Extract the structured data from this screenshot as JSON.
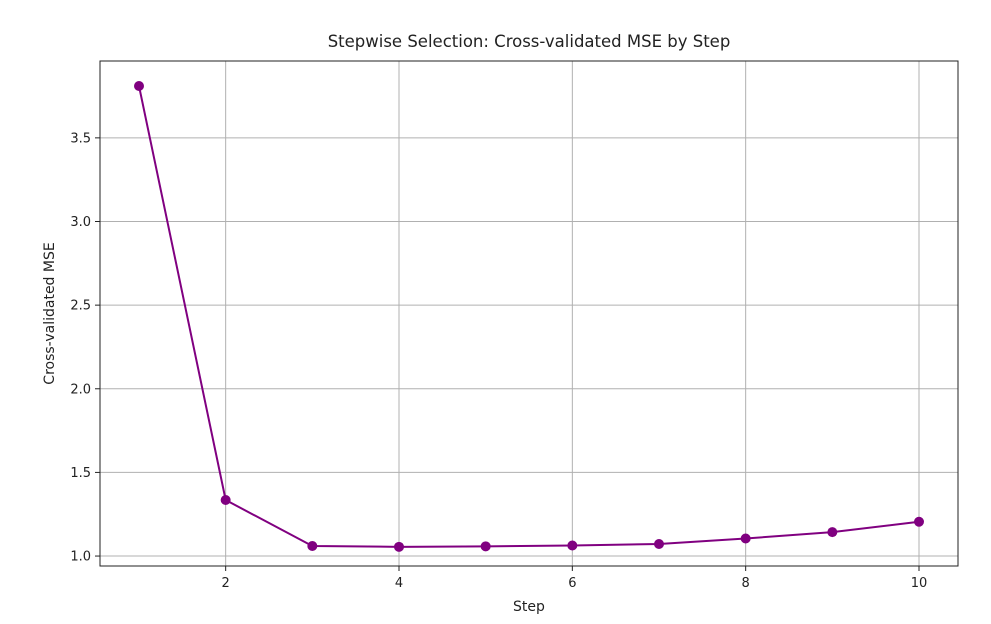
{
  "chart_data": {
    "type": "line",
    "title": "Stepwise Selection: Cross-validated MSE by Step",
    "xlabel": "Step",
    "ylabel": "Cross-validated MSE",
    "x": [
      1,
      2,
      3,
      4,
      5,
      6,
      7,
      8,
      9,
      10
    ],
    "series": [
      {
        "values": [
          3.81,
          1.335,
          1.06,
          1.055,
          1.058,
          1.063,
          1.072,
          1.105,
          1.143,
          1.205
        ],
        "color": "#800080",
        "marker": "circle"
      }
    ],
    "xticks": [
      2,
      4,
      6,
      8,
      10
    ],
    "xtick_labels": [
      "2",
      "4",
      "6",
      "8",
      "10"
    ],
    "yticks": [
      1.0,
      1.5,
      2.0,
      2.5,
      3.0,
      3.5
    ],
    "ytick_labels": [
      "1.0",
      "1.5",
      "2.0",
      "2.5",
      "3.0",
      "3.5"
    ],
    "xlim": [
      0.55,
      10.45
    ],
    "ylim": [
      0.9405,
      3.9595
    ],
    "grid": true
  }
}
